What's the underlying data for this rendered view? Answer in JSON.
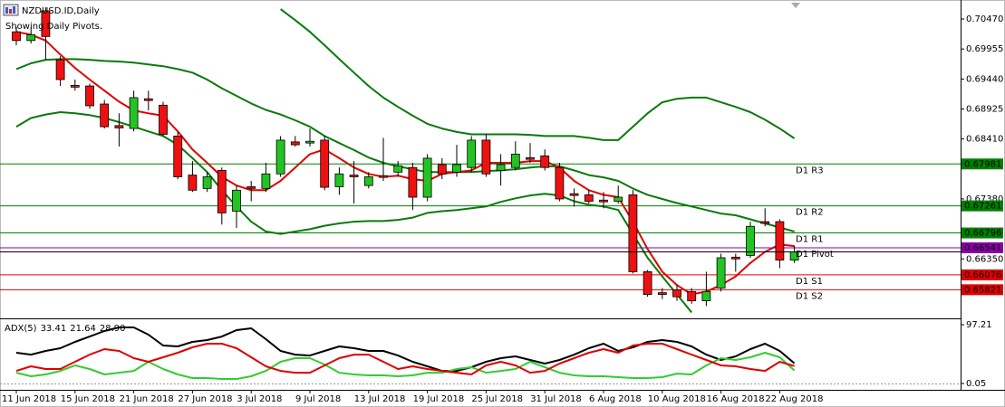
{
  "chart_data": [
    {
      "type": "candlestick",
      "title": "NZDUSD.ID,Daily",
      "subtitle": "Showing Daily Pivots.",
      "categories": [
        "11 Jun 2018",
        null,
        null,
        null,
        "15 Jun 2018",
        null,
        null,
        null,
        "21 Jun 2018",
        null,
        null,
        null,
        "27 Jun 2018",
        null,
        null,
        null,
        "3 Jul 2018",
        null,
        null,
        null,
        "9 Jul 2018",
        null,
        null,
        null,
        "13 Jul 2018",
        null,
        null,
        null,
        "19 Jul 2018",
        null,
        null,
        null,
        "25 Jul 2018",
        null,
        null,
        null,
        "31 Jul 2018",
        null,
        null,
        null,
        "6 Aug 2018",
        null,
        null,
        null,
        "10 Aug 2018",
        null,
        null,
        null,
        "16 Aug 2018",
        null,
        null,
        null,
        "22 Aug 2018",
        null
      ],
      "open": [
        0.7025,
        0.701,
        0.7061,
        0.6977,
        0.6933,
        0.6932,
        0.6901,
        0.6864,
        0.6859,
        0.691,
        0.6899,
        0.6846,
        0.6779,
        0.6756,
        0.6787,
        0.6717,
        0.6759,
        0.6756,
        0.6781,
        0.6836,
        0.6834,
        0.6839,
        0.6759,
        0.6779,
        0.6761,
        0.6778,
        0.6784,
        0.6792,
        0.6741,
        0.6797,
        0.6784,
        0.6792,
        0.6839,
        0.6787,
        0.6792,
        0.6809,
        0.6812,
        0.6792,
        0.6747,
        0.6745,
        0.6736,
        0.6734,
        0.6745,
        0.6613,
        0.6577,
        0.6582,
        0.6579,
        0.6563,
        0.6585,
        0.6638,
        0.6641,
        0.6699,
        0.6699,
        0.6633
      ],
      "high": [
        0.7033,
        0.7033,
        0.7067,
        0.6983,
        0.6943,
        0.6936,
        0.6908,
        0.6885,
        0.6924,
        0.6924,
        0.6905,
        0.6853,
        0.6803,
        0.6784,
        0.6792,
        0.6761,
        0.6769,
        0.68,
        0.6846,
        0.6846,
        0.6859,
        0.6846,
        0.6792,
        0.6803,
        0.6784,
        0.6843,
        0.6803,
        0.68,
        0.6815,
        0.6808,
        0.6831,
        0.6846,
        0.6849,
        0.6815,
        0.6837,
        0.6834,
        0.6823,
        0.68,
        0.6756,
        0.6753,
        0.675,
        0.6761,
        0.6753,
        0.6616,
        0.6585,
        0.659,
        0.6585,
        0.6613,
        0.6644,
        0.6644,
        0.6699,
        0.6722,
        0.6703,
        0.6657
      ],
      "low": [
        0.7002,
        0.7005,
        0.6977,
        0.6932,
        0.6924,
        0.6893,
        0.6859,
        0.6828,
        0.6854,
        0.689,
        0.6846,
        0.6772,
        0.675,
        0.675,
        0.6694,
        0.6688,
        0.6734,
        0.675,
        0.6776,
        0.6828,
        0.6828,
        0.6753,
        0.6745,
        0.673,
        0.6756,
        0.6769,
        0.6776,
        0.6719,
        0.6734,
        0.6772,
        0.6776,
        0.6784,
        0.6776,
        0.6761,
        0.6787,
        0.68,
        0.6787,
        0.6734,
        0.6725,
        0.673,
        0.6722,
        0.673,
        0.661,
        0.657,
        0.6566,
        0.6563,
        0.6558,
        0.6554,
        0.6579,
        0.6613,
        0.6637,
        0.6691,
        0.6619,
        0.6628
      ],
      "close": [
        0.701,
        0.702,
        0.7017,
        0.6943,
        0.693,
        0.6898,
        0.6862,
        0.686,
        0.6912,
        0.6907,
        0.6849,
        0.6776,
        0.6753,
        0.6776,
        0.6714,
        0.6753,
        0.6756,
        0.6781,
        0.6839,
        0.6831,
        0.6837,
        0.6758,
        0.6781,
        0.6776,
        0.6776,
        0.6775,
        0.6795,
        0.6741,
        0.6808,
        0.6781,
        0.6797,
        0.6839,
        0.6781,
        0.6797,
        0.6815,
        0.6806,
        0.6792,
        0.6738,
        0.6744,
        0.6734,
        0.6733,
        0.6741,
        0.6613,
        0.6574,
        0.6574,
        0.657,
        0.6563,
        0.6579,
        0.6637,
        0.6635,
        0.6691,
        0.6696,
        0.6633,
        0.6647
      ],
      "up_color": "#22c322",
      "down_color": "#ee1111",
      "series": [
        {
          "color": "#0a7a0a",
          "values": [
            null,
            null,
            null,
            null,
            null,
            null,
            null,
            null,
            null,
            null,
            null,
            null,
            null,
            null,
            null,
            null,
            null,
            null,
            0.7064,
            0.7045,
            0.7025,
            0.7002,
            0.6978,
            0.6955,
            0.6932,
            0.6912,
            0.6896,
            0.6881,
            0.6867,
            0.6859,
            0.6853,
            0.6849,
            0.6849,
            0.6849,
            0.6849,
            0.6848,
            0.6846,
            0.6846,
            0.6846,
            0.6843,
            0.6839,
            0.6839,
            0.6862,
            0.6885,
            0.6904,
            0.691,
            0.6912,
            0.6912,
            0.6904,
            0.6896,
            0.6887,
            0.6874,
            0.6859,
            0.6842
          ]
        },
        {
          "color": "#0a7a0a",
          "values": [
            0.6961,
            0.6971,
            0.6977,
            0.6978,
            0.6978,
            0.6977,
            0.6975,
            0.6974,
            0.6972,
            0.6969,
            0.6966,
            0.6961,
            0.6955,
            0.6943,
            0.6928,
            0.6915,
            0.6902,
            0.6891,
            0.6883,
            0.6873,
            0.6862,
            0.6846,
            0.6834,
            0.6822,
            0.6809,
            0.68,
            0.6794,
            0.6789,
            0.6784,
            0.6784,
            0.6784,
            0.6784,
            0.6786,
            0.6787,
            0.6789,
            0.6792,
            0.6794,
            0.6794,
            0.6787,
            0.6779,
            0.6775,
            0.6769,
            0.6756,
            0.6745,
            0.6738,
            0.6731,
            0.6725,
            0.6719,
            0.6713,
            0.671,
            0.6703,
            0.6696,
            0.6689,
            0.6682
          ]
        },
        {
          "color": "#0a7a0a",
          "values": [
            0.6862,
            0.6877,
            0.6883,
            0.6887,
            0.6885,
            0.6882,
            0.6877,
            0.687,
            0.6862,
            0.6854,
            0.6846,
            0.6831,
            0.6808,
            0.6784,
            0.6753,
            0.6725,
            0.6699,
            0.6682,
            0.6678,
            0.6682,
            0.6686,
            0.6692,
            0.6696,
            0.6699,
            0.67,
            0.67,
            0.6702,
            0.6706,
            0.6714,
            0.6717,
            0.6719,
            0.6722,
            0.6725,
            0.6733,
            0.6739,
            0.6744,
            0.6747,
            0.6744,
            0.6734,
            0.6728,
            0.6725,
            0.6719,
            0.6678,
            0.6637,
            0.6605,
            0.6574,
            0.6543,
            null,
            null,
            null,
            null,
            null,
            null,
            null
          ]
        },
        {
          "color": "#e00000",
          "values": [
            0.7025,
            0.702,
            0.701,
            0.6986,
            0.6963,
            0.6943,
            0.6924,
            0.6905,
            0.689,
            0.6885,
            0.6881,
            0.6854,
            0.6823,
            0.68,
            0.6776,
            0.6761,
            0.6753,
            0.6753,
            0.6769,
            0.6792,
            0.6815,
            0.6823,
            0.6808,
            0.6792,
            0.6781,
            0.6776,
            0.6778,
            0.6772,
            0.6769,
            0.6781,
            0.6784,
            0.6787,
            0.68,
            0.68,
            0.68,
            0.6803,
            0.6803,
            0.6792,
            0.6769,
            0.6753,
            0.6745,
            0.6741,
            0.6699,
            0.6652,
            0.6613,
            0.659,
            0.6574,
            0.6579,
            0.659,
            0.6605,
            0.6628,
            0.6647,
            0.666,
            0.6657
          ]
        }
      ],
      "pivots": [
        {
          "name": "D1 R3",
          "value": 0.67981,
          "color": "#008000"
        },
        {
          "name": "D1 R2",
          "value": 0.67261,
          "color": "#008000"
        },
        {
          "name": "D1 R1",
          "value": 0.66796,
          "color": "#008000"
        },
        {
          "name": "D1 Pivot",
          "value": 0.66541,
          "color": "#8a00a8"
        },
        {
          "name": "D1 S1",
          "value": 0.66076,
          "color": "#e00000"
        },
        {
          "name": "D1 S2",
          "value": 0.65821,
          "color": "#e00000"
        }
      ],
      "ylim": [
        0.6536,
        0.7075
      ],
      "yticks": [
        {
          "value": 0.7047,
          "label": "0.70470"
        },
        0.69955,
        {
          "value": 0.6944,
          "label": "0.69440"
        },
        0.68925,
        {
          "value": 0.6841,
          "label": "0.68410"
        },
        {
          "value": 0.6738,
          "label": "0.67380"
        },
        {
          "value": 0.6635,
          "label": "0.66350"
        }
      ]
    },
    {
      "type": "line",
      "title": "ADX(5)",
      "series": [
        {
          "color": "#000000",
          "values": [
            50.8,
            47.8,
            53.8,
            58.3,
            68.8,
            77.7,
            86.7,
            92.7,
            92.7,
            80.7,
            62.8,
            61.3,
            68.8,
            71.8,
            77.7,
            88.2,
            91.2,
            73.3,
            53.8,
            47.8,
            46.3,
            53.8,
            61.3,
            58.3,
            53.8,
            53.8,
            46.3,
            35.9,
            28.4,
            20.9,
            20.9,
            26.9,
            35.9,
            41.9,
            44.9,
            38.9,
            32.9,
            38.9,
            47.8,
            58.3,
            65.8,
            53.8,
            59.8,
            68.8,
            71.8,
            68.8,
            61.3,
            47.8,
            38.9,
            44.9,
            56.8,
            65.8,
            53.8,
            33.41
          ]
        },
        {
          "color": "#33cc33",
          "values": [
            17.9,
            12,
            15,
            20.9,
            29.9,
            23.9,
            15,
            17.9,
            20.9,
            35.9,
            23.9,
            15,
            9,
            9,
            7.5,
            7.5,
            12,
            20.9,
            35.9,
            41.9,
            41.9,
            31.4,
            17.9,
            15,
            13.5,
            13.5,
            12,
            13.5,
            17.9,
            17.9,
            23.9,
            26.9,
            17.9,
            20.9,
            23.9,
            35.9,
            26.9,
            17.9,
            13.5,
            12,
            12,
            10.5,
            9,
            9,
            10.5,
            16.4,
            15,
            29.9,
            41.9,
            38.9,
            43.4,
            50.8,
            43.4,
            21.64
          ]
        },
        {
          "color": "#dd0000",
          "values": [
            20.9,
            28.4,
            23.9,
            23.9,
            35.9,
            47.8,
            56.8,
            53.8,
            41.9,
            35.9,
            43.4,
            50.8,
            59.8,
            65.8,
            65.8,
            58.3,
            43.4,
            28.4,
            20.9,
            17.9,
            17.9,
            29.9,
            41.9,
            47.8,
            47.8,
            35.9,
            23.9,
            28.4,
            23.9,
            20.9,
            17.9,
            15,
            29.9,
            35.9,
            29.9,
            17.9,
            20.9,
            32.9,
            41.9,
            50.8,
            56.8,
            50.8,
            62.8,
            65.8,
            65.8,
            56.8,
            47.8,
            38.9,
            29.9,
            28.4,
            23.9,
            20.9,
            35.9,
            28.9
          ],
          "value_labels": [
            null,
            null,
            null,
            null,
            null,
            null,
            null,
            null,
            null,
            null,
            null,
            null,
            null,
            null,
            null,
            null,
            null,
            null,
            null,
            null,
            null,
            null,
            null,
            null,
            null,
            null,
            null,
            null,
            null,
            null,
            null,
            null,
            null,
            null,
            null,
            null,
            null,
            null,
            null,
            null,
            null,
            null,
            null,
            null,
            null,
            null,
            null,
            null,
            null,
            null,
            null,
            null,
            null,
            "28.90"
          ]
        }
      ],
      "ylim": [
        0.05,
        97.21
      ],
      "yticks": [
        97.21,
        0.05
      ]
    }
  ]
}
